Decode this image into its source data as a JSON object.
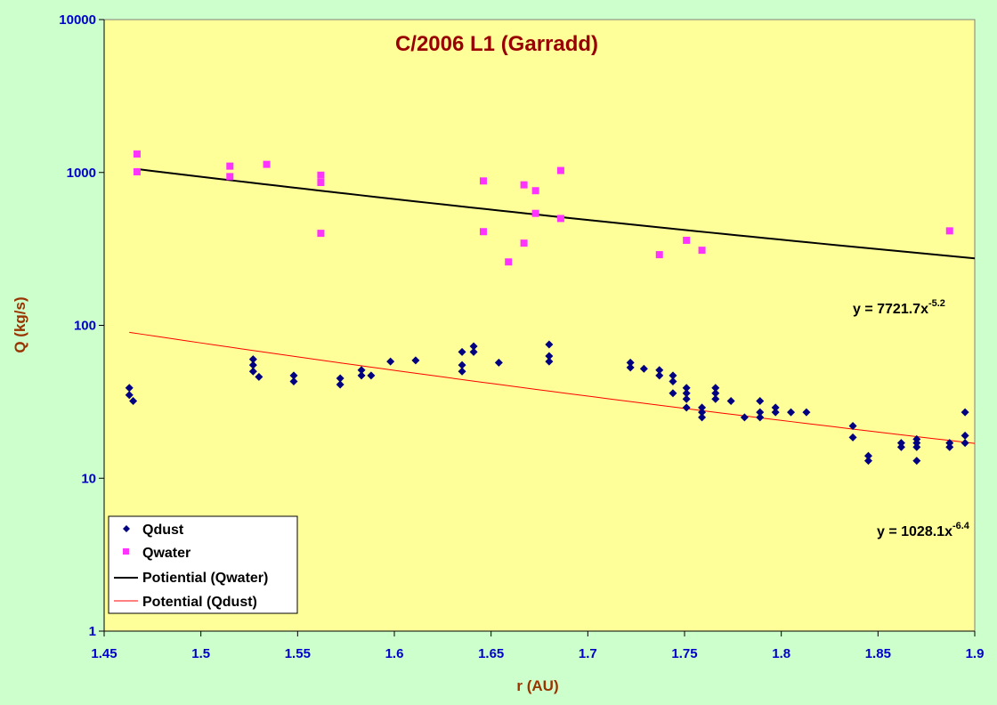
{
  "chart_data": {
    "type": "scatter",
    "title": "C/2006 L1 (Garradd)",
    "xlabel": "r (AU)",
    "ylabel": "Q (kg/s)",
    "xlim": [
      1.45,
      1.9
    ],
    "ylim": [
      1,
      10000
    ],
    "yscale": "log",
    "x_ticks": [
      "1.45",
      "1.5",
      "1.55",
      "1.6",
      "1.65",
      "1.7",
      "1.75",
      "1.8",
      "1.85",
      "1.9"
    ],
    "y_ticks": [
      "1",
      "10",
      "100",
      "1000",
      "10000"
    ],
    "grid": false,
    "legend_position": "bottom-left",
    "colors": {
      "plot_bg": "#ffff99",
      "page_bg": "#ccffcc",
      "qdust": "#000080",
      "qwater": "#ff33ff",
      "fit_water": "#000000",
      "fit_dust": "#ff0000"
    },
    "series": [
      {
        "name": "Qdust",
        "marker": "diamond",
        "points": [
          [
            1.463,
            39
          ],
          [
            1.463,
            35
          ],
          [
            1.465,
            32
          ],
          [
            1.527,
            60
          ],
          [
            1.527,
            55
          ],
          [
            1.527,
            50
          ],
          [
            1.53,
            46
          ],
          [
            1.548,
            47
          ],
          [
            1.548,
            43
          ],
          [
            1.572,
            45
          ],
          [
            1.572,
            41
          ],
          [
            1.583,
            51
          ],
          [
            1.583,
            47
          ],
          [
            1.588,
            47
          ],
          [
            1.598,
            58
          ],
          [
            1.611,
            59
          ],
          [
            1.635,
            67
          ],
          [
            1.635,
            55
          ],
          [
            1.635,
            50
          ],
          [
            1.641,
            73
          ],
          [
            1.641,
            67
          ],
          [
            1.654,
            57
          ],
          [
            1.68,
            75
          ],
          [
            1.68,
            63
          ],
          [
            1.68,
            58
          ],
          [
            1.722,
            57
          ],
          [
            1.722,
            53
          ],
          [
            1.729,
            52
          ],
          [
            1.737,
            51
          ],
          [
            1.737,
            47
          ],
          [
            1.744,
            47
          ],
          [
            1.744,
            43
          ],
          [
            1.744,
            36
          ],
          [
            1.751,
            39
          ],
          [
            1.751,
            36
          ],
          [
            1.751,
            33
          ],
          [
            1.751,
            29
          ],
          [
            1.759,
            29
          ],
          [
            1.759,
            27
          ],
          [
            1.759,
            25
          ],
          [
            1.766,
            39
          ],
          [
            1.766,
            36
          ],
          [
            1.766,
            33
          ],
          [
            1.774,
            32
          ],
          [
            1.781,
            25
          ],
          [
            1.789,
            32
          ],
          [
            1.789,
            27
          ],
          [
            1.789,
            25
          ],
          [
            1.797,
            29
          ],
          [
            1.797,
            27
          ],
          [
            1.805,
            27
          ],
          [
            1.813,
            27
          ],
          [
            1.837,
            22
          ],
          [
            1.837,
            18.5
          ],
          [
            1.845,
            14
          ],
          [
            1.845,
            13
          ],
          [
            1.862,
            17
          ],
          [
            1.862,
            16
          ],
          [
            1.87,
            18
          ],
          [
            1.87,
            17
          ],
          [
            1.87,
            16
          ],
          [
            1.87,
            13
          ],
          [
            1.887,
            17
          ],
          [
            1.887,
            16
          ],
          [
            1.895,
            27
          ],
          [
            1.895,
            19
          ],
          [
            1.895,
            17
          ]
        ]
      },
      {
        "name": "Qwater",
        "marker": "square",
        "points": [
          [
            1.467,
            1320
          ],
          [
            1.467,
            1010
          ],
          [
            1.515,
            1100
          ],
          [
            1.515,
            940
          ],
          [
            1.534,
            1130
          ],
          [
            1.562,
            960
          ],
          [
            1.562,
            860
          ],
          [
            1.562,
            400
          ],
          [
            1.646,
            880
          ],
          [
            1.646,
            410
          ],
          [
            1.659,
            260
          ],
          [
            1.667,
            830
          ],
          [
            1.667,
            345
          ],
          [
            1.673,
            760
          ],
          [
            1.673,
            540
          ],
          [
            1.686,
            1030
          ],
          [
            1.686,
            500
          ],
          [
            1.737,
            290
          ],
          [
            1.751,
            360
          ],
          [
            1.759,
            310
          ],
          [
            1.887,
            415
          ]
        ]
      }
    ],
    "fits": [
      {
        "name": "Potiential (Qwater)",
        "coef": 7721.7,
        "exp": -5.2,
        "x_range": [
          1.467,
          1.9
        ]
      },
      {
        "name": "Potential (Qdust)",
        "coef": 1028.1,
        "exp": -6.4,
        "x_range": [
          1.463,
          1.9
        ]
      }
    ],
    "annotations": [
      {
        "base": "y = 7721.7x",
        "exp": "-5.2"
      },
      {
        "base": "y = 1028.1x",
        "exp": "-6.4"
      }
    ]
  }
}
